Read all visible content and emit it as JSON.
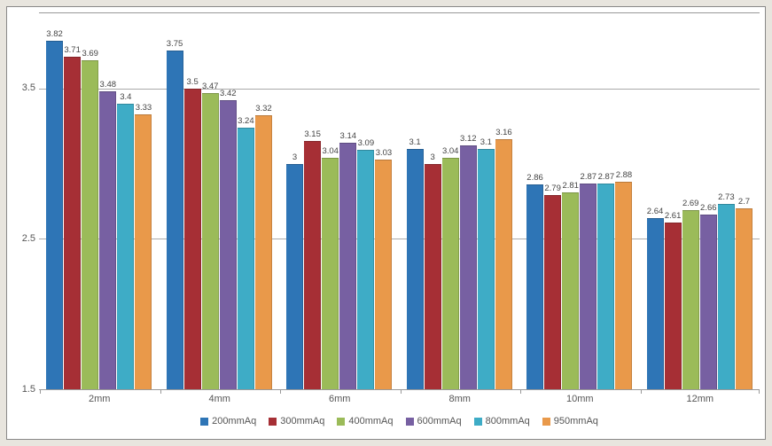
{
  "chart": {
    "type": "bar",
    "background_color": "#ffffff",
    "outer_background": "#e8e5de",
    "grid_color": "#aaaaaa",
    "text_color": "#555555",
    "label_fontsize": 11,
    "value_fontsize": 9.5,
    "ylim": [
      1.5,
      4.0
    ],
    "yticks": [
      1.5,
      2.5,
      3.5
    ],
    "categories": [
      "2mm",
      "4mm",
      "6mm",
      "8mm",
      "10mm",
      "12mm"
    ],
    "series": [
      {
        "name": "200mmAq",
        "color": "#2e75b6",
        "values": [
          3.82,
          3.75,
          3.0,
          3.1,
          2.86,
          2.64
        ],
        "labels": [
          "3.82",
          "3.75",
          "3",
          "3.1",
          "2.86",
          "2.64"
        ]
      },
      {
        "name": "300mmAq",
        "color": "#a62f35",
        "values": [
          3.71,
          3.5,
          3.15,
          3.0,
          2.79,
          2.61
        ],
        "labels": [
          "3.71",
          "3.5",
          "3.15",
          "3",
          "2.79",
          "2.61"
        ]
      },
      {
        "name": "400mmAq",
        "color": "#9bbb59",
        "values": [
          3.69,
          3.47,
          3.04,
          3.04,
          2.81,
          2.69
        ],
        "labels": [
          "3.69",
          "3.47",
          "3.04",
          "3.04",
          "2.81",
          "2.69"
        ]
      },
      {
        "name": "600mmAq",
        "color": "#7760a2",
        "values": [
          3.48,
          3.42,
          3.14,
          3.12,
          2.87,
          2.66
        ],
        "labels": [
          "3.48",
          "3.42",
          "3.14",
          "3.12",
          "2.87",
          "2.66"
        ]
      },
      {
        "name": "800mmAq",
        "color": "#3eacc6",
        "values": [
          3.4,
          3.24,
          3.09,
          3.1,
          2.87,
          2.73
        ],
        "labels": [
          "3.4",
          "3.24",
          "3.09",
          "3.1",
          "2.87",
          "2.73"
        ]
      },
      {
        "name": "950mmAq",
        "color": "#e9994a",
        "values": [
          3.33,
          3.32,
          3.03,
          3.16,
          2.88,
          2.7
        ],
        "labels": [
          "3.33",
          "3.32",
          "3.03",
          "3.16",
          "2.88",
          "2.7"
        ]
      }
    ],
    "bar_width": 0.85
  }
}
